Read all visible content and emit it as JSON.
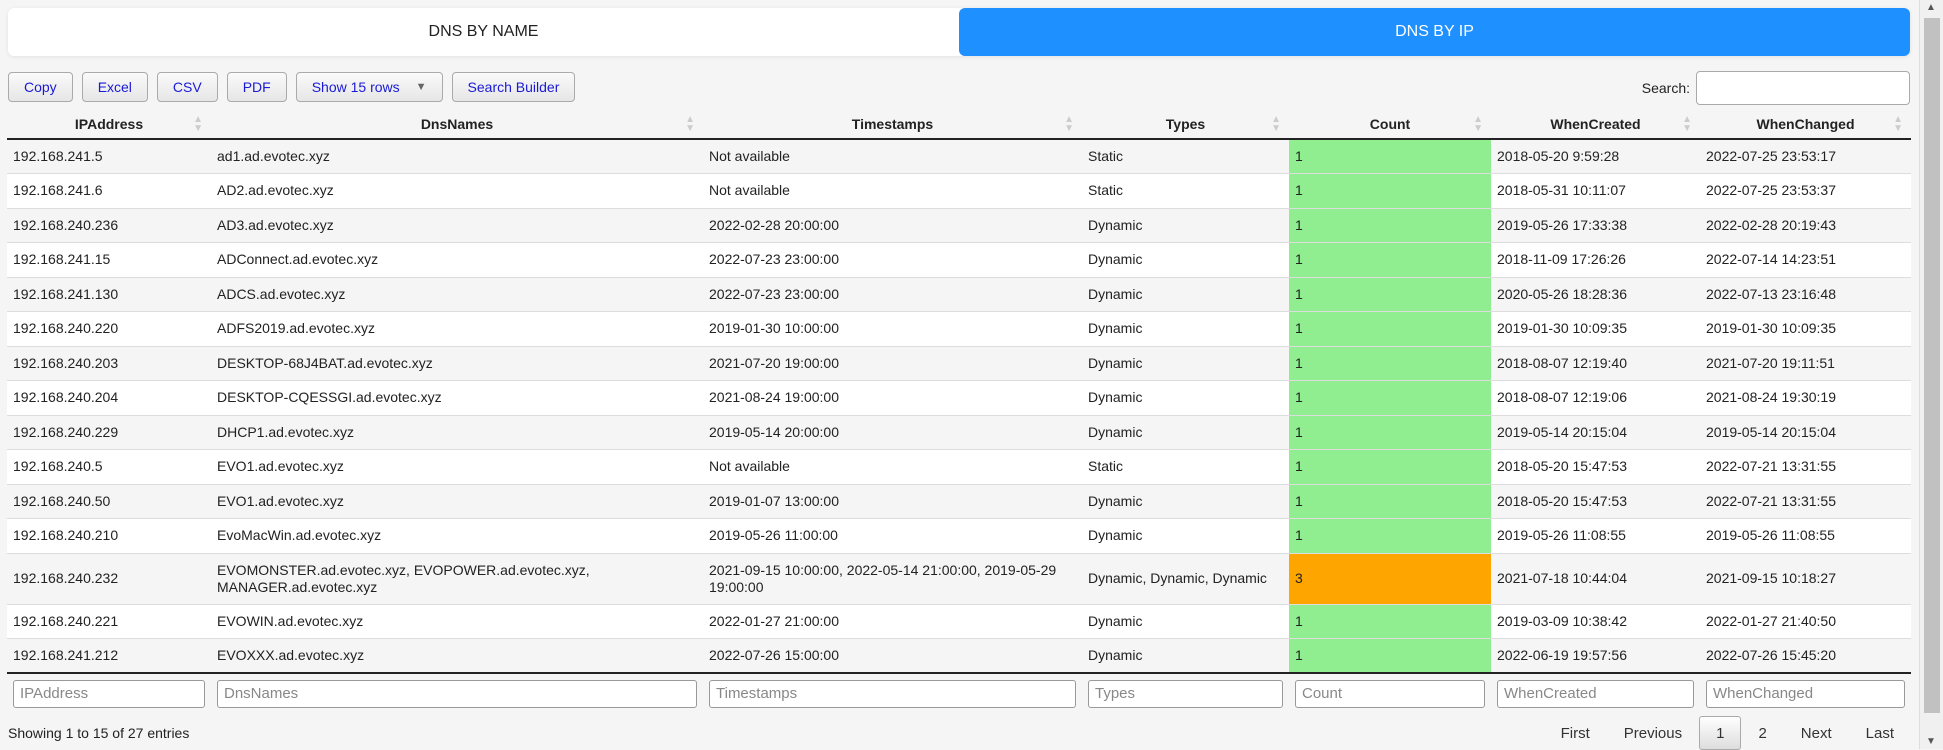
{
  "tabs": [
    {
      "label": "DNS BY NAME",
      "active": false
    },
    {
      "label": "DNS BY IP",
      "active": true
    }
  ],
  "toolbar": {
    "copy": "Copy",
    "excel": "Excel",
    "csv": "CSV",
    "pdf": "PDF",
    "show_rows": "Show 15 rows",
    "search_builder": "Search Builder"
  },
  "search": {
    "label": "Search:",
    "value": ""
  },
  "columns": [
    "IPAddress",
    "DnsNames",
    "Timestamps",
    "Types",
    "Count",
    "WhenCreated",
    "WhenChanged"
  ],
  "colors": {
    "count_one": "#90ee90",
    "count_many": "#ffa500",
    "active_tab": "#1e90ff"
  },
  "rows": [
    [
      "192.168.241.5",
      "ad1.ad.evotec.xyz",
      "Not available",
      "Static",
      "1",
      "2018-05-20 9:59:28",
      "2022-07-25 23:53:17"
    ],
    [
      "192.168.241.6",
      "AD2.ad.evotec.xyz",
      "Not available",
      "Static",
      "1",
      "2018-05-31 10:11:07",
      "2022-07-25 23:53:37"
    ],
    [
      "192.168.240.236",
      "AD3.ad.evotec.xyz",
      "2022-02-28 20:00:00",
      "Dynamic",
      "1",
      "2019-05-26 17:33:38",
      "2022-02-28 20:19:43"
    ],
    [
      "192.168.241.15",
      "ADConnect.ad.evotec.xyz",
      "2022-07-23 23:00:00",
      "Dynamic",
      "1",
      "2018-11-09 17:26:26",
      "2022-07-14 14:23:51"
    ],
    [
      "192.168.241.130",
      "ADCS.ad.evotec.xyz",
      "2022-07-23 23:00:00",
      "Dynamic",
      "1",
      "2020-05-26 18:28:36",
      "2022-07-13 23:16:48"
    ],
    [
      "192.168.240.220",
      "ADFS2019.ad.evotec.xyz",
      "2019-01-30 10:00:00",
      "Dynamic",
      "1",
      "2019-01-30 10:09:35",
      "2019-01-30 10:09:35"
    ],
    [
      "192.168.240.203",
      "DESKTOP-68J4BAT.ad.evotec.xyz",
      "2021-07-20 19:00:00",
      "Dynamic",
      "1",
      "2018-08-07 12:19:40",
      "2021-07-20 19:11:51"
    ],
    [
      "192.168.240.204",
      "DESKTOP-CQESSGI.ad.evotec.xyz",
      "2021-08-24 19:00:00",
      "Dynamic",
      "1",
      "2018-08-07 12:19:06",
      "2021-08-24 19:30:19"
    ],
    [
      "192.168.240.229",
      "DHCP1.ad.evotec.xyz",
      "2019-05-14 20:00:00",
      "Dynamic",
      "1",
      "2019-05-14 20:15:04",
      "2019-05-14 20:15:04"
    ],
    [
      "192.168.240.5",
      "EVO1.ad.evotec.xyz",
      "Not available",
      "Static",
      "1",
      "2018-05-20 15:47:53",
      "2022-07-21 13:31:55"
    ],
    [
      "192.168.240.50",
      "EVO1.ad.evotec.xyz",
      "2019-01-07 13:00:00",
      "Dynamic",
      "1",
      "2018-05-20 15:47:53",
      "2022-07-21 13:31:55"
    ],
    [
      "192.168.240.210",
      "EvoMacWin.ad.evotec.xyz",
      "2019-05-26 11:00:00",
      "Dynamic",
      "1",
      "2019-05-26 11:08:55",
      "2019-05-26 11:08:55"
    ],
    [
      "192.168.240.232",
      "EVOMONSTER.ad.evotec.xyz, EVOPOWER.ad.evotec.xyz, MANAGER.ad.evotec.xyz",
      "2021-09-15 10:00:00, 2022-05-14 21:00:00, 2019-05-29 19:00:00",
      "Dynamic, Dynamic, Dynamic",
      "3",
      "2021-07-18 10:44:04",
      "2021-09-15 10:18:27"
    ],
    [
      "192.168.240.221",
      "EVOWIN.ad.evotec.xyz",
      "2022-01-27 21:00:00",
      "Dynamic",
      "1",
      "2019-03-09 10:38:42",
      "2022-01-27 21:40:50"
    ],
    [
      "192.168.241.212",
      "EVOXXX.ad.evotec.xyz",
      "2022-07-26 15:00:00",
      "Dynamic",
      "1",
      "2022-06-19 19:57:56",
      "2022-07-26 15:45:20"
    ]
  ],
  "info": "Showing 1 to 15 of 27 entries",
  "pager": {
    "first": "First",
    "previous": "Previous",
    "pages": [
      "1",
      "2"
    ],
    "current": "1",
    "next": "Next",
    "last": "Last"
  }
}
